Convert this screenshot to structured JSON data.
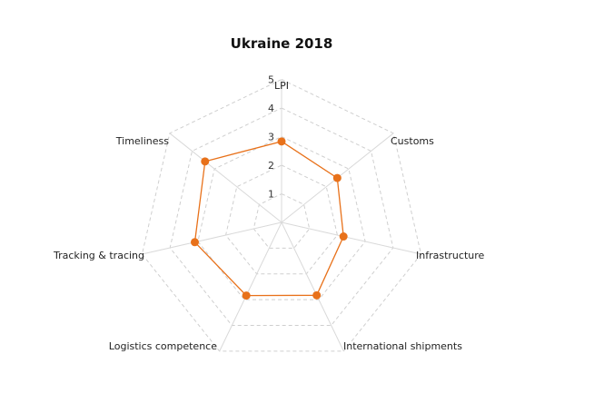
{
  "chart_data": {
    "type": "radar",
    "title": "Ukraine 2018",
    "axes": [
      "LPI",
      "Customs",
      "Infrastructure",
      "International shipments",
      "Logistics competence",
      "Tracking & tracing",
      "Timeliness"
    ],
    "ticks": [
      1,
      2,
      3,
      4,
      5
    ],
    "rlim": [
      0,
      5
    ],
    "grid": true,
    "series": [
      {
        "values": [
          2.83,
          2.49,
          2.22,
          2.83,
          2.84,
          3.11,
          3.42
        ],
        "color": "#e8711a"
      }
    ]
  }
}
